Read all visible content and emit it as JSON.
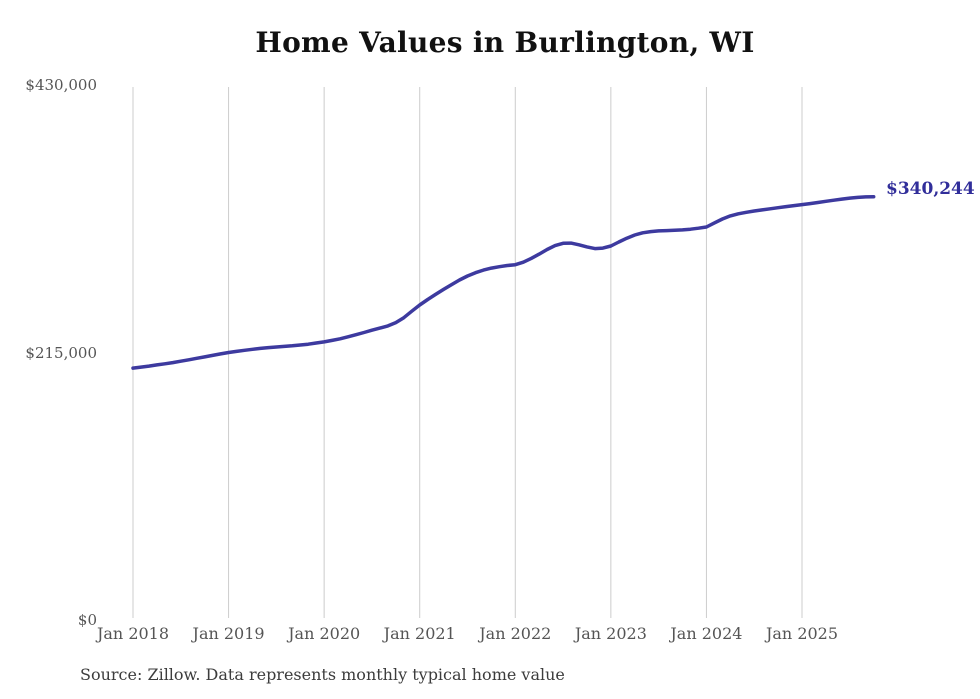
{
  "title": "Home Values in Burlington, WI",
  "source_note": "Source: Zillow. Data represents monthly typical home value",
  "colors": {
    "line": "#3d3a9f",
    "end_label": "#312e9a",
    "grid": "#cccccc",
    "axis_text": "#555555",
    "title_text": "#111111",
    "source_text": "#3c3c3c",
    "background": "#ffffff"
  },
  "chart_data": {
    "type": "line",
    "title": "Home Values in Burlington, WI",
    "xlabel": "",
    "ylabel": "",
    "x_start": "2018-01",
    "x_end": "2025-10",
    "x_tick_labels": [
      "Jan 2018",
      "Jan 2019",
      "Jan 2020",
      "Jan 2021",
      "Jan 2022",
      "Jan 2023",
      "Jan 2024",
      "Jan 2025"
    ],
    "y_ticks": [
      0,
      215000,
      430000
    ],
    "y_tick_labels": [
      "$0",
      "$215,000",
      "$430,000"
    ],
    "ylim": [
      0,
      430000
    ],
    "grid": "vertical-only",
    "legend": "none",
    "last_value": 340244,
    "last_value_label": "$340,244",
    "series": [
      {
        "name": "Typical home value",
        "unit": "USD",
        "frequency": "monthly",
        "monthly_values": [
          202500,
          203300,
          204100,
          205000,
          205900,
          206900,
          208000,
          209100,
          210300,
          211500,
          212700,
          213900,
          215000,
          215900,
          216800,
          217600,
          218300,
          218900,
          219400,
          219900,
          220400,
          221000,
          221700,
          222600,
          223500,
          224700,
          226000,
          227600,
          229300,
          231100,
          232900,
          234600,
          236400,
          239000,
          243000,
          248200,
          253200,
          257600,
          261700,
          265700,
          269600,
          273300,
          276500,
          279100,
          281200,
          282800,
          284000,
          284900,
          285600,
          287600,
          290600,
          294100,
          297800,
          300900,
          302800,
          302900,
          301600,
          299900,
          298500,
          298900,
          300600,
          303800,
          306900,
          309400,
          311200,
          312200,
          312700,
          313000,
          313200,
          313500,
          314100,
          314900,
          315900,
          319200,
          322300,
          324800,
          326500,
          327700,
          328700,
          329600,
          330500,
          331400,
          332300,
          333100,
          333900,
          334700,
          335600,
          336500,
          337400,
          338300,
          339100,
          339700,
          340100,
          340244
        ]
      }
    ]
  }
}
